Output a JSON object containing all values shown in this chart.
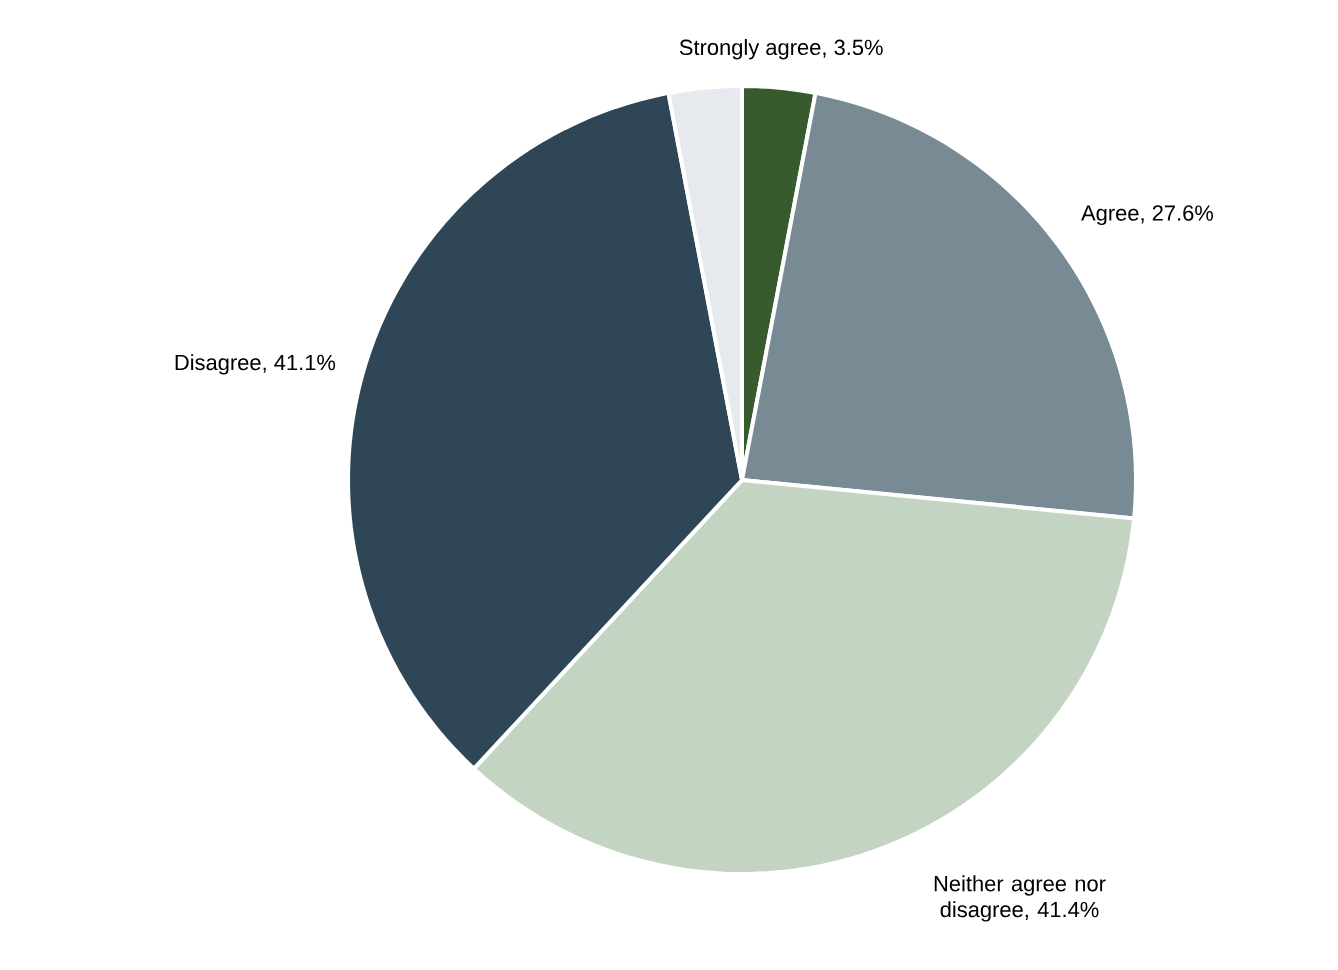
{
  "chart_data": {
    "type": "pie",
    "categories": [
      "Strongly agree",
      "Agree",
      "Neither agree nor disagree",
      "Disagree",
      null
    ],
    "values": [
      3.5,
      27.6,
      41.4,
      41.1,
      3.5
    ],
    "value_labels": [
      ", 3.5%",
      ", 27.6%",
      ", 41.4%",
      ", 41.1%",
      null
    ],
    "colors": [
      "#375a2f",
      "#788a94",
      "#c3d5c2",
      "#2f4656",
      "#e6eaee"
    ]
  }
}
